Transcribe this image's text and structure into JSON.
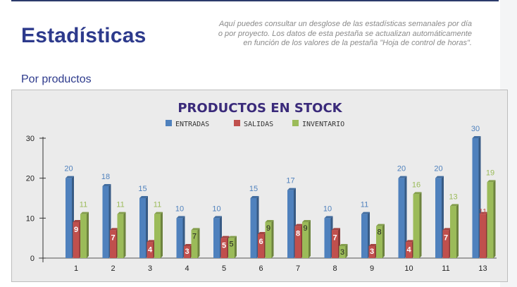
{
  "header": {
    "title": "Estadísticas",
    "description_lines": [
      "Aquí puedes consultar un desglose de las estadísticas semanales por día",
      "o por proyecto. Los datos de esta pestaña se actualizan automáticamente",
      "en función de los valores de la pestaña \"Hoja de control de horas\"."
    ]
  },
  "section_title": "Por productos",
  "colors": {
    "entradas": "#4f81bd",
    "salidas": "#c0504d",
    "inventario": "#9bbb59",
    "title": "#3a2a7a"
  },
  "chart_data": {
    "type": "bar",
    "title": "PRODUCTOS EN STOCK",
    "categories": [
      "1",
      "2",
      "3",
      "4",
      "5",
      "6",
      "7",
      "8",
      "9",
      "10",
      "11",
      "13"
    ],
    "series": [
      {
        "name": "ENTRADAS",
        "values": [
          20,
          18,
          15,
          10,
          10,
          15,
          17,
          10,
          11,
          20,
          20,
          30
        ]
      },
      {
        "name": "SALIDAS",
        "values": [
          9,
          7,
          4,
          3,
          5,
          6,
          8,
          7,
          3,
          4,
          7,
          11
        ]
      },
      {
        "name": "INVENTARIO",
        "values": [
          11,
          11,
          11,
          7,
          5,
          9,
          9,
          3,
          8,
          16,
          13,
          19
        ]
      }
    ],
    "ylim": [
      0,
      30
    ],
    "yticks": [
      0,
      10,
      20,
      30
    ],
    "legend": "top",
    "grid": false
  }
}
